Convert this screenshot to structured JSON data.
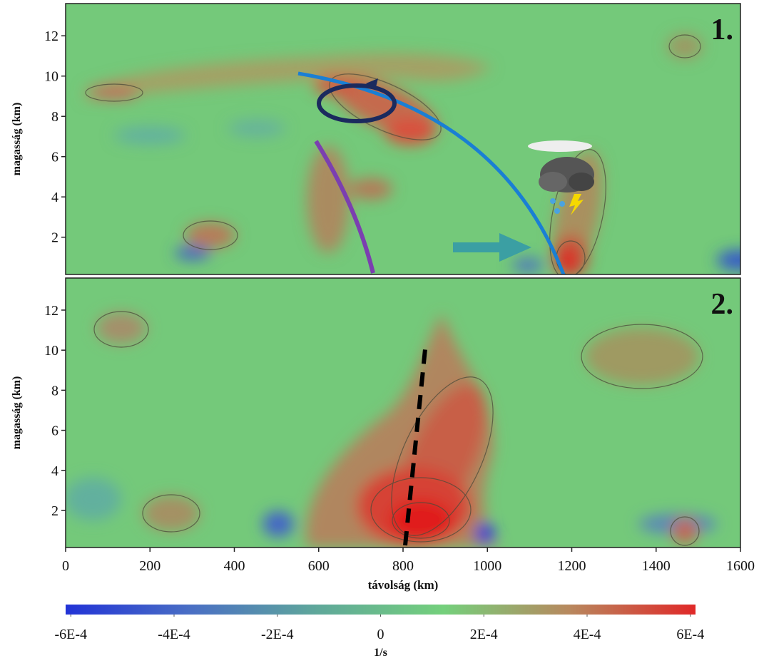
{
  "chart_data": {
    "type": "field",
    "xlabel": "távolság (km)",
    "xlim": [
      0,
      1600
    ],
    "xticks": [
      0,
      200,
      400,
      600,
      800,
      1000,
      1200,
      1400,
      1600
    ],
    "panels": [
      {
        "label": "1.",
        "ylabel": "magasság (km)",
        "ylim": [
          0.15,
          13.6
        ],
        "yticks": [
          2,
          4,
          6,
          8,
          10,
          12
        ]
      },
      {
        "label": "2.",
        "ylabel": "magasság (km)",
        "ylim": [
          0.15,
          13.6
        ],
        "yticks": [
          2,
          4,
          6,
          8,
          10,
          12
        ]
      }
    ],
    "colorbar": {
      "label": "1/s",
      "lim": [
        -0.00061,
        0.00061
      ],
      "ticks": [
        {
          "value": -0.0006,
          "label": "-6E-4"
        },
        {
          "value": -0.0004,
          "label": "-4E-4"
        },
        {
          "value": -0.0002,
          "label": "-2E-4"
        },
        0,
        {
          "value": 0.0002,
          "label": "2E-4"
        },
        {
          "value": 0.0004,
          "label": "4E-4"
        },
        {
          "value": 0.0006,
          "label": "6E-4"
        }
      ],
      "colors": [
        "#2233d6",
        "#4a6fc4",
        "#5fa89a",
        "#74d07c",
        "#b8885e",
        "#e02828"
      ]
    }
  }
}
